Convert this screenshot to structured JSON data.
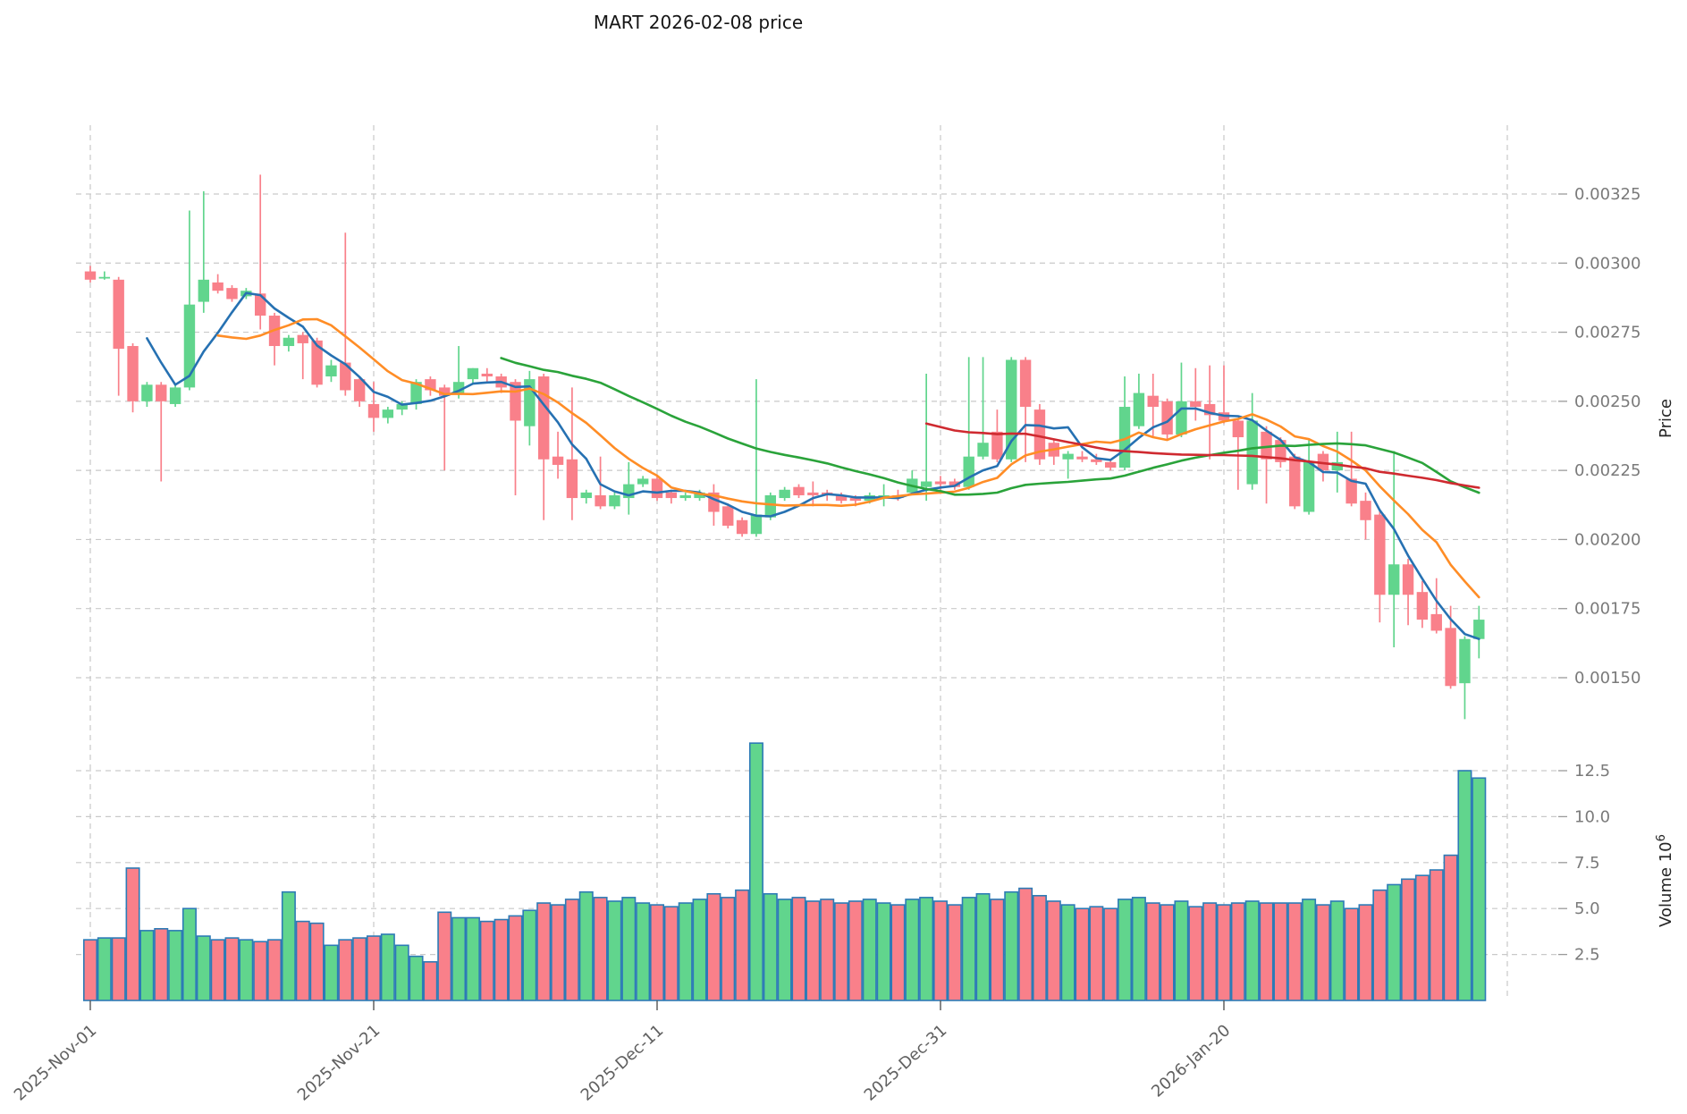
{
  "title": "MART  2026-02-08  price",
  "chart_data": {
    "type": "candlestick",
    "symbol": "MART",
    "as_of_date": "2026-02-08",
    "grid": true,
    "legend": "none",
    "price_axis": {
      "label": "Price",
      "side": "right",
      "ticks": [
        0.00325,
        0.003,
        0.00275,
        0.0025,
        0.00225,
        0.002,
        0.00175,
        0.0015
      ],
      "range": [
        0.0013,
        0.0035
      ]
    },
    "volume_axis": {
      "label": "Volume",
      "unit": "10⁶",
      "side": "right",
      "ticks": [
        12.5,
        10.0,
        7.5,
        5.0,
        2.5
      ],
      "range": [
        0,
        14.5
      ]
    },
    "x_axis": {
      "tick_labels": [
        {
          "index": 0,
          "label": "2025-Nov-01"
        },
        {
          "index": 20,
          "label": "2025-Nov-21"
        },
        {
          "index": 40,
          "label": "2025-Dec-11"
        },
        {
          "index": 60,
          "label": "2025-Dec-31"
        },
        {
          "index": 80,
          "label": "2026-Jan-20"
        }
      ],
      "gridline_indices": [
        0,
        20,
        40,
        60,
        80,
        100
      ],
      "first_date": "2025-Nov-01",
      "last_date": "2026-02-07"
    },
    "price_scale": 1e-05,
    "volume_unit": 1000000,
    "candles": {
      "columns": [
        "open",
        "high",
        "low",
        "close",
        "volume_millions"
      ],
      "note": "prices in units of price_scale (1e-5)",
      "rows": [
        [
          297,
          299,
          293,
          294,
          3.3
        ],
        [
          295,
          297,
          294,
          295,
          3.4
        ],
        [
          294,
          295,
          252,
          269,
          3.4
        ],
        [
          270,
          271,
          246,
          250,
          7.2
        ],
        [
          250,
          257,
          248,
          256,
          3.8
        ],
        [
          256,
          257,
          221,
          250,
          3.9
        ],
        [
          249,
          256,
          248,
          255,
          3.8
        ],
        [
          255,
          319,
          254,
          285,
          5.0
        ],
        [
          286,
          326,
          282,
          294,
          3.5
        ],
        [
          293,
          296,
          289,
          290,
          3.3
        ],
        [
          291,
          292,
          286,
          287,
          3.4
        ],
        [
          288,
          291,
          287,
          290,
          3.3
        ],
        [
          289,
          332,
          276,
          281,
          3.2
        ],
        [
          281,
          282,
          263,
          270,
          3.3
        ],
        [
          270,
          274,
          268,
          273,
          5.9
        ],
        [
          274,
          275,
          258,
          271,
          4.3
        ],
        [
          272,
          273,
          255,
          256,
          4.2
        ],
        [
          259,
          265,
          257,
          263,
          3.0
        ],
        [
          264,
          311,
          252,
          254,
          3.3
        ],
        [
          258,
          259,
          248,
          250,
          3.4
        ],
        [
          249,
          257,
          239,
          244,
          3.5
        ],
        [
          244,
          248,
          242,
          247,
          3.6
        ],
        [
          247,
          250,
          245,
          249,
          3.0
        ],
        [
          249,
          258,
          247,
          257,
          2.4
        ],
        [
          258,
          259,
          252,
          254,
          2.1
        ],
        [
          255,
          256,
          225,
          252,
          4.8
        ],
        [
          253,
          270,
          251,
          257,
          4.5
        ],
        [
          258,
          262,
          256,
          262,
          4.5
        ],
        [
          260,
          262,
          257,
          259,
          4.3
        ],
        [
          259,
          260,
          253,
          255,
          4.4
        ],
        [
          257,
          258,
          216,
          243,
          4.6
        ],
        [
          241,
          261,
          234,
          258,
          4.9
        ],
        [
          259,
          260,
          207,
          229,
          5.3
        ],
        [
          230,
          239,
          222,
          227,
          5.2
        ],
        [
          229,
          255,
          207,
          215,
          5.5
        ],
        [
          215,
          218,
          213,
          217,
          5.9
        ],
        [
          216,
          230,
          211,
          212,
          5.6
        ],
        [
          212,
          217,
          211,
          216,
          5.4
        ],
        [
          215,
          228,
          209,
          220,
          5.6
        ],
        [
          220,
          223,
          219,
          222,
          5.3
        ],
        [
          222,
          223,
          214,
          215,
          5.2
        ],
        [
          217,
          218,
          213,
          215,
          5.1
        ],
        [
          215,
          217,
          214,
          216,
          5.3
        ],
        [
          215,
          218,
          214,
          217,
          5.5
        ],
        [
          217,
          220,
          205,
          210,
          5.8
        ],
        [
          212,
          213,
          204,
          205,
          5.6
        ],
        [
          207,
          208,
          201,
          202,
          6.0
        ],
        [
          202,
          258,
          201,
          209,
          14.0
        ],
        [
          208,
          217,
          207,
          216,
          5.8
        ],
        [
          215,
          219,
          214,
          218,
          5.5
        ],
        [
          219,
          220,
          215,
          216,
          5.6
        ],
        [
          217,
          221,
          212,
          216,
          5.4
        ],
        [
          217,
          218,
          214,
          216,
          5.5
        ],
        [
          216,
          217,
          213,
          214,
          5.3
        ],
        [
          215,
          216,
          212,
          214,
          5.4
        ],
        [
          214,
          217,
          213,
          216,
          5.5
        ],
        [
          215,
          220,
          212,
          216,
          5.3
        ],
        [
          216,
          218,
          214,
          215,
          5.2
        ],
        [
          217,
          225,
          216,
          222,
          5.5
        ],
        [
          219,
          260,
          214,
          221,
          5.6
        ],
        [
          221,
          223,
          218,
          220,
          5.4
        ],
        [
          221,
          222,
          218,
          219,
          5.2
        ],
        [
          219,
          266,
          218,
          230,
          5.6
        ],
        [
          230,
          266,
          229,
          235,
          5.8
        ],
        [
          239,
          247,
          228,
          229,
          5.5
        ],
        [
          229,
          266,
          228,
          265,
          5.9
        ],
        [
          265,
          266,
          228,
          248,
          6.1
        ],
        [
          247,
          249,
          227,
          229,
          5.7
        ],
        [
          235,
          236,
          227,
          230,
          5.4
        ],
        [
          229,
          232,
          222,
          231,
          5.2
        ],
        [
          230,
          232,
          228,
          229,
          5.0
        ],
        [
          229,
          231,
          227,
          228,
          5.1
        ],
        [
          228,
          229,
          225,
          226,
          5.0
        ],
        [
          226,
          259,
          225,
          248,
          5.5
        ],
        [
          241,
          260,
          240,
          253,
          5.6
        ],
        [
          252,
          260,
          237,
          248,
          5.3
        ],
        [
          250,
          251,
          236,
          238,
          5.2
        ],
        [
          238,
          264,
          237,
          250,
          5.4
        ],
        [
          250,
          262,
          243,
          248,
          5.1
        ],
        [
          249,
          263,
          229,
          245,
          5.3
        ],
        [
          246,
          263,
          242,
          243,
          5.2
        ],
        [
          243,
          244,
          218,
          237,
          5.3
        ],
        [
          220,
          253,
          218,
          243,
          5.4
        ],
        [
          239,
          241,
          213,
          229,
          5.3
        ],
        [
          236,
          237,
          226,
          228,
          5.3
        ],
        [
          230,
          231,
          211,
          212,
          5.3
        ],
        [
          210,
          236,
          209,
          228,
          5.5
        ],
        [
          231,
          232,
          221,
          225,
          5.2
        ],
        [
          225,
          239,
          217,
          228,
          5.4
        ],
        [
          222,
          239,
          212,
          213,
          5.0
        ],
        [
          214,
          217,
          200,
          207,
          5.2
        ],
        [
          209,
          211,
          170,
          180,
          6.0
        ],
        [
          180,
          232,
          161,
          191,
          6.3
        ],
        [
          191,
          193,
          169,
          180,
          6.6
        ],
        [
          181,
          185,
          168,
          171,
          6.8
        ],
        [
          173,
          186,
          166,
          167,
          7.1
        ],
        [
          168,
          176,
          146,
          147,
          7.9
        ],
        [
          148,
          165,
          135,
          164,
          12.5
        ],
        [
          164,
          176,
          157,
          171,
          12.1
        ]
      ]
    },
    "moving_averages": [
      {
        "name": "SMA5",
        "window": 5,
        "color": "#2671b2"
      },
      {
        "name": "SMA10",
        "window": 10,
        "color": "#ff8d26"
      },
      {
        "name": "SMA30",
        "window": 30,
        "color": "#2aa33a"
      },
      {
        "name": "SMA60",
        "window": 60,
        "color": "#cf2a30"
      }
    ],
    "colors": {
      "up": "#61d58d",
      "down": "#f9808a",
      "volume_edge": "#2d7bb6",
      "grid": "#c9c9c9"
    }
  }
}
